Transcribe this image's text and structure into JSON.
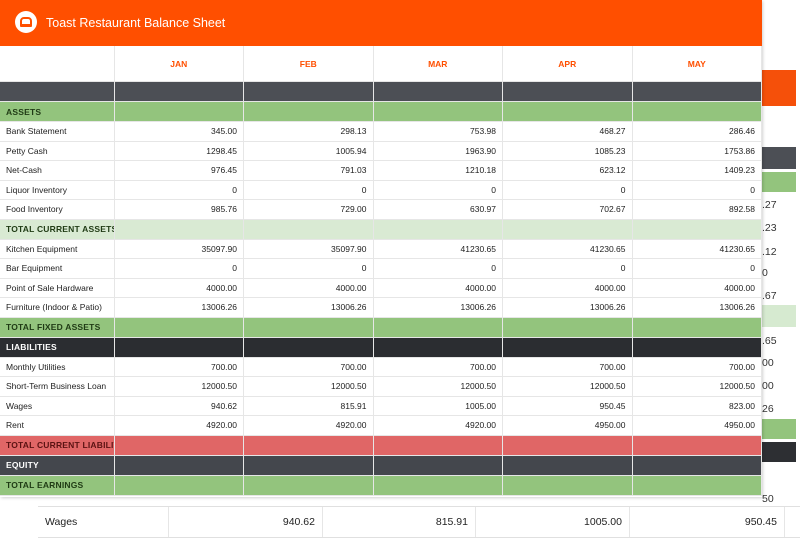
{
  "app": {
    "title": "Toast Restaurant Balance Sheet"
  },
  "months": [
    "JAN",
    "FEB",
    "MAR",
    "APR",
    "MAY"
  ],
  "rows": [
    {
      "type": "dark",
      "label": ""
    },
    {
      "type": "green",
      "label": "ASSETS"
    },
    {
      "type": "data",
      "label": "Bank Statement",
      "values": [
        "345.00",
        "298.13",
        "753.98",
        "468.27",
        "286.46"
      ]
    },
    {
      "type": "data",
      "label": "Petty Cash",
      "values": [
        "1298.45",
        "1005.94",
        "1963.90",
        "1085.23",
        "1753.86"
      ]
    },
    {
      "type": "data",
      "label": "Net-Cash",
      "values": [
        "976.45",
        "791.03",
        "1210.18",
        "623.12",
        "1409.23"
      ]
    },
    {
      "type": "data",
      "label": "Liquor Inventory",
      "values": [
        "0",
        "0",
        "0",
        "0",
        "0"
      ]
    },
    {
      "type": "data",
      "label": "Food Inventory",
      "values": [
        "985.76",
        "729.00",
        "630.97",
        "702.67",
        "892.58"
      ]
    },
    {
      "type": "lightgreen",
      "label": "TOTAL CURRENT ASSETS"
    },
    {
      "type": "data",
      "label": "Kitchen Equipment",
      "values": [
        "35097.90",
        "35097.90",
        "41230.65",
        "41230.65",
        "41230.65"
      ]
    },
    {
      "type": "data",
      "label": "Bar Equipment",
      "values": [
        "0",
        "0",
        "0",
        "0",
        "0"
      ]
    },
    {
      "type": "data",
      "label": "Point of Sale Hardware",
      "values": [
        "4000.00",
        "4000.00",
        "4000.00",
        "4000.00",
        "4000.00"
      ]
    },
    {
      "type": "data",
      "label": "Furniture (Indoor & Patio)",
      "values": [
        "13006.26",
        "13006.26",
        "13006.26",
        "13006.26",
        "13006.26"
      ]
    },
    {
      "type": "green",
      "label": "TOTAL FIXED ASSETS"
    },
    {
      "type": "black",
      "label": "LIABILITIES"
    },
    {
      "type": "data",
      "label": "Monthly Utilities",
      "values": [
        "700.00",
        "700.00",
        "700.00",
        "700.00",
        "700.00"
      ]
    },
    {
      "type": "data",
      "label": "Short-Term Business Loan",
      "values": [
        "12000.50",
        "12000.50",
        "12000.50",
        "12000.50",
        "12000.50"
      ]
    },
    {
      "type": "data",
      "label": "Wages",
      "values": [
        "940.62",
        "815.91",
        "1005.00",
        "950.45",
        "823.00"
      ]
    },
    {
      "type": "data",
      "label": "Rent",
      "values": [
        "4920.00",
        "4920.00",
        "4920.00",
        "4950.00",
        "4950.00"
      ]
    },
    {
      "type": "red",
      "label": "TOTAL CURRENT LIABILITIES"
    },
    {
      "type": "slate",
      "label": "EQUITY"
    },
    {
      "type": "green",
      "label": "TOTAL EARNINGS"
    }
  ],
  "background_sheet": {
    "edge_numbers": [
      ".27",
      ".23",
      ".12",
      "0",
      ".67",
      ".65",
      "00",
      "00",
      "26",
      "50"
    ],
    "wages_row": {
      "label": "Wages",
      "values": [
        "940.62",
        "815.91",
        "1005.00",
        "950.45"
      ]
    }
  }
}
